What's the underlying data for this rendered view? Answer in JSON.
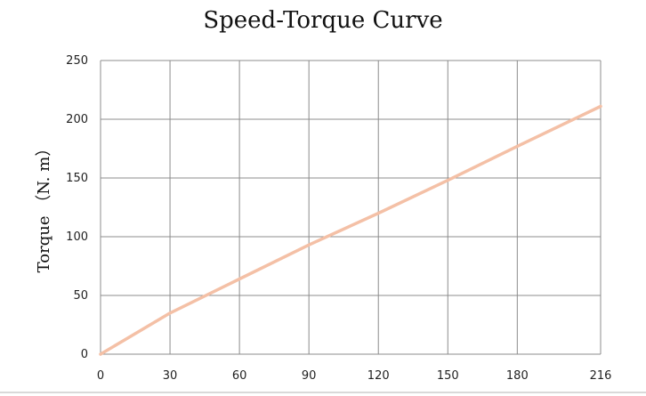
{
  "chart_data": {
    "type": "line",
    "title": "Speed-Torque Curve",
    "xlabel": "",
    "ylabel": "Torque （N. m）",
    "x_ticks": [
      0,
      30,
      60,
      90,
      120,
      150,
      180,
      216
    ],
    "y_ticks": [
      0,
      50,
      100,
      150,
      200,
      250
    ],
    "xlim": [
      0,
      216
    ],
    "ylim": [
      0,
      250
    ],
    "grid": true,
    "series": [
      {
        "color": "#f4c0a6",
        "x": [
          0,
          30,
          60,
          90,
          120,
          150,
          180,
          216
        ],
        "y": [
          0,
          35,
          64,
          93,
          120,
          148,
          177,
          211
        ]
      }
    ]
  }
}
